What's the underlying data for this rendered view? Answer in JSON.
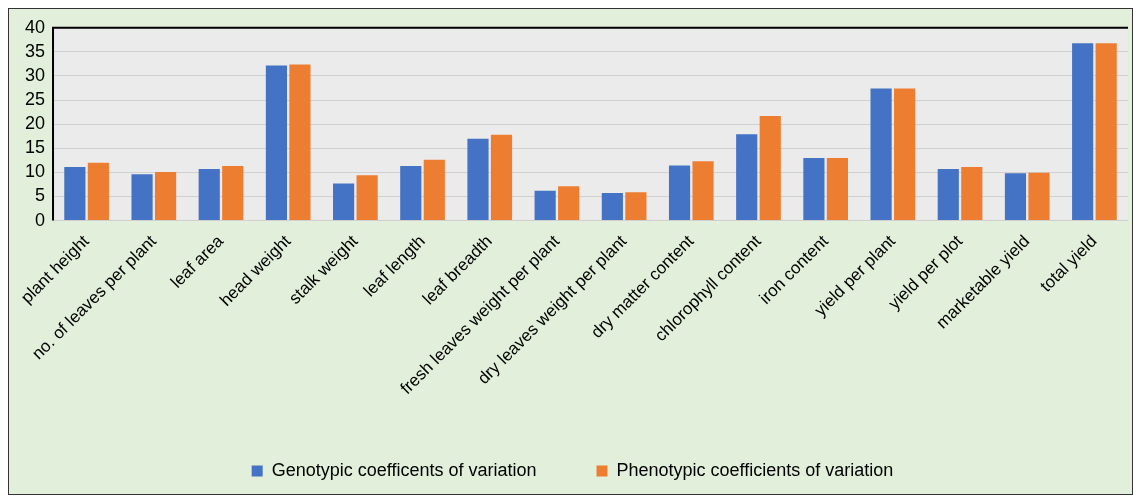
{
  "chart_data": {
    "type": "bar",
    "categories": [
      "plant height",
      "no. of leaves per plant",
      "leaf area",
      "head weight",
      "stalk weight",
      "leaf length",
      "leaf breadth",
      "fresh leaves weight per plant",
      "dry leaves weight per plant",
      "dry matter content",
      "chlorophyll content",
      "iron content",
      "yield per plant",
      "yield per plot",
      "marketable yield",
      "total yield"
    ],
    "series": [
      {
        "name": "Genotypic coefficents of variation",
        "color": "#4472c4",
        "values": [
          11.1,
          9.6,
          10.7,
          32.2,
          7.7,
          11.3,
          17.0,
          6.2,
          5.7,
          11.4,
          17.9,
          13.0,
          27.4,
          10.7,
          9.8,
          36.8
        ]
      },
      {
        "name": "Phenotypic coefficients of variation",
        "color": "#ed7d31",
        "values": [
          12.0,
          10.1,
          11.3,
          32.4,
          9.4,
          12.6,
          17.8,
          7.1,
          5.9,
          12.3,
          21.7,
          13.0,
          27.4,
          11.1,
          9.9,
          36.8
        ]
      }
    ],
    "ylim": [
      0,
      40
    ],
    "yticks": [
      0,
      5,
      10,
      15,
      20,
      25,
      30,
      35,
      40
    ],
    "grid": "y",
    "legend": "bottom"
  }
}
